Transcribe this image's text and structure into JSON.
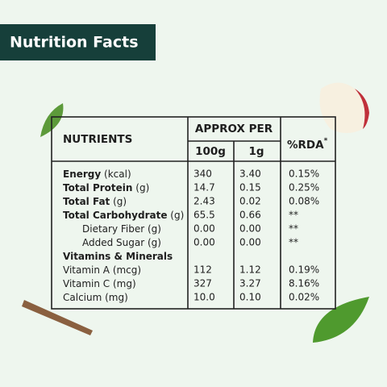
{
  "header": {
    "title": "Nutrition Facts"
  },
  "table": {
    "columns": {
      "nutrients": "NUTRIENTS",
      "approx": "APPROX PER",
      "per100": "100g",
      "per1": "1g",
      "rda": "%RDA",
      "rda_mark": "*"
    },
    "rows": [
      {
        "name": "Energy",
        "unit": "(kcal)",
        "bold": true,
        "indent": false,
        "values": [
          "340",
          "3.40",
          "0.15%"
        ]
      },
      {
        "name": "Total Protein",
        "unit": "(g)",
        "bold": true,
        "indent": false,
        "values": [
          "14.7",
          "0.15",
          "0.25%"
        ]
      },
      {
        "name": "Total Fat",
        "unit": "(g)",
        "bold": true,
        "indent": false,
        "values": [
          "2.43",
          "0.02",
          "0.08%"
        ]
      },
      {
        "name": "Total Carbohydrate",
        "unit": "(g)",
        "bold": true,
        "indent": false,
        "values": [
          "65.5",
          "0.66",
          "**"
        ]
      },
      {
        "name": "Dietary Fiber",
        "unit": "(g)",
        "bold": false,
        "indent": true,
        "values": [
          "0.00",
          "0.00",
          "**"
        ]
      },
      {
        "name": "Added Sugar",
        "unit": "(g)",
        "bold": false,
        "indent": true,
        "values": [
          "0.00",
          "0.00",
          "**"
        ]
      },
      {
        "name": "Vitamins & Minerals",
        "bold": true,
        "indent": false,
        "values": []
      },
      {
        "name": "Vitamin A",
        "unit": "(mcg)",
        "bold": false,
        "indent": false,
        "values": [
          "112",
          "1.12",
          "0.19%"
        ]
      },
      {
        "name": "Vitamin C",
        "unit": "(mg)",
        "bold": false,
        "indent": false,
        "values": [
          "327",
          "3.27",
          "8.16%"
        ]
      },
      {
        "name": "Calcium",
        "unit": "(mg)",
        "bold": false,
        "indent": false,
        "values": [
          "10.0",
          "0.10",
          "0.02%"
        ]
      }
    ]
  }
}
